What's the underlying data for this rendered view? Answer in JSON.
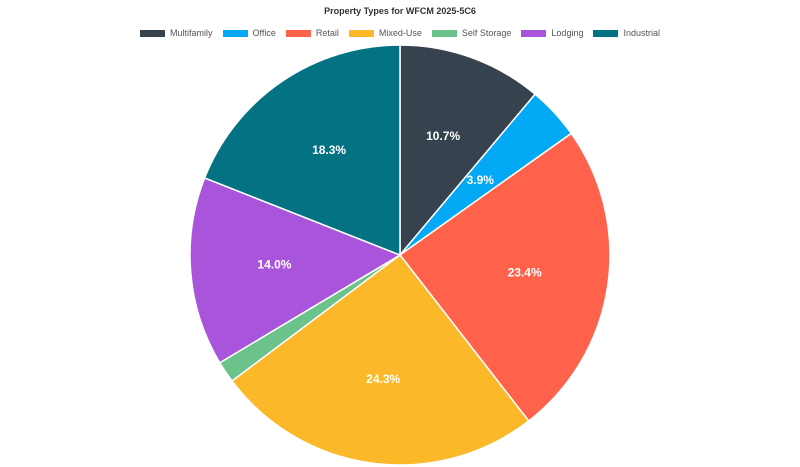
{
  "chart_data": {
    "type": "pie",
    "title": "Property Types for WFCM 2025-5C6",
    "legend_position": "top",
    "categories": [
      "Multifamily",
      "Office",
      "Retail",
      "Mixed-Use",
      "Self Storage",
      "Lodging",
      "Industrial"
    ],
    "values": [
      10.7,
      3.9,
      23.4,
      24.3,
      1.6,
      14.0,
      18.3
    ],
    "labels": [
      "10.7%",
      "3.9%",
      "23.4%",
      "24.3%",
      "",
      "14.0%",
      "18.3%"
    ],
    "colors": [
      "#36424d",
      "#03a9f4",
      "#ff624a",
      "#fbb829",
      "#6cc28b",
      "#a855dc",
      "#037384"
    ],
    "start_angle_deg": 0,
    "direction": "clockwise"
  }
}
